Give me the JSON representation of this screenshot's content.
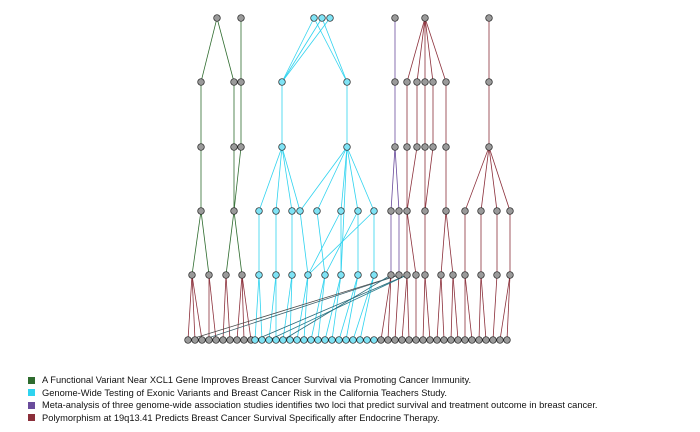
{
  "colors": {
    "green": "#2e6b2e",
    "cyan": "#2fd3ef",
    "purple": "#6a4c9c",
    "maroon": "#8b2f3a",
    "node_fill": "#9a9a9a"
  },
  "legend": {
    "items": [
      {
        "color": "#2e6b2e",
        "label": "A Functional Variant Near XCL1 Gene Improves Breast Cancer Survival via Promoting Cancer Immunity."
      },
      {
        "color": "#2fd3ef",
        "label": "Genome-Wide Testing of Exonic Variants and Breast Cancer Risk in the California Teachers Study."
      },
      {
        "color": "#6a4c9c",
        "label": "Meta-analysis of three genome-wide association studies identifies two loci that predict survival and treatment outcome in breast cancer."
      },
      {
        "color": "#8b2f3a",
        "label": "Polymorphism at 19q13.41 Predicts Breast Cancer Survival Specifically after Endocrine Therapy."
      }
    ]
  }
}
